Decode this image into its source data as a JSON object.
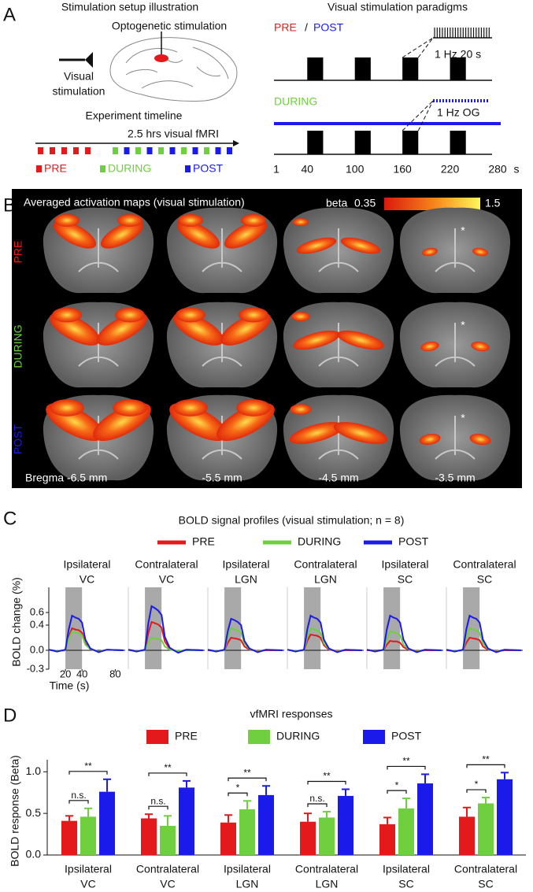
{
  "panel_labels": [
    "A",
    "B",
    "C",
    "D"
  ],
  "panel_a": {
    "setup_title": "Stimulation setup illustration",
    "opto_label": "Optogenetic stimulation",
    "visual_label": [
      "Visual",
      "stimulation"
    ],
    "timeline_title": "Experiment timeline",
    "timeline_label": "2.5 hrs visual fMRI",
    "timeline_legend": [
      "PRE",
      "DURING",
      "POST"
    ],
    "paradigm_title": "Visual stimulation paradigms",
    "pre_label": "PRE",
    "slash": "/",
    "post_label": "POST",
    "during_label": "DURING",
    "zoom_label_visual": "1 Hz 20 s",
    "zoom_label_og": "1 Hz OG",
    "paradigm_axis": {
      "xlim": [
        1,
        280
      ],
      "ticks": [
        1,
        40,
        100,
        160,
        220,
        280
      ],
      "unit": "s",
      "blocks": [
        40,
        100,
        160,
        220
      ],
      "block_duration": 20
    }
  },
  "panel_b": {
    "title": "Averaged activation maps  (visual stimulation)",
    "colorbar": {
      "label": "beta",
      "min": 0.35,
      "max": 1.5
    },
    "rows": [
      "PRE",
      "DURING",
      "POST"
    ],
    "columns": [
      "Bregma -6.5 mm",
      "-5.5 mm",
      "-4.5 mm",
      "-3.5 mm"
    ],
    "marker": "*"
  },
  "chart_data": [
    {
      "type": "line",
      "title": "BOLD signal profiles (visual stimulation; n = 8)",
      "x_label": "Time (s)",
      "y_label": "BOLD change (%)",
      "x": [
        0,
        10,
        20,
        24,
        28,
        32,
        36,
        40,
        44,
        50,
        60,
        70,
        90
      ],
      "xlim": [
        0,
        92
      ],
      "xticks": [
        20,
        40,
        80
      ],
      "stimulus": [
        20,
        40
      ],
      "ylim": [
        -0.3,
        1.0
      ],
      "yticks": [
        -0.3,
        {
          "value": 0,
          "label": "0.0"
        },
        0.4,
        0.6
      ],
      "series": [
        {
          "name": "PRE",
          "color": "#e3191c"
        },
        {
          "name": "DURING",
          "color": "#6fcf3f"
        },
        {
          "name": "POST",
          "color": "#1a1aeb"
        }
      ],
      "panels": [
        {
          "name": [
            "Ipsilateral",
            "VC"
          ],
          "values": [
            [
              0.01,
              -0.01,
              0,
              0.21,
              0.35,
              0.33,
              0.32,
              0.28,
              0.11,
              0.02,
              -0.02,
              0.01,
              0
            ],
            [
              0.01,
              -0.01,
              0,
              0.18,
              0.3,
              0.29,
              0.27,
              0.24,
              0.09,
              0.02,
              -0.02,
              0.01,
              0
            ],
            [
              0.01,
              -0.02,
              0.01,
              0.33,
              0.55,
              0.52,
              0.5,
              0.44,
              0.17,
              0.03,
              -0.03,
              0.01,
              0
            ]
          ]
        },
        {
          "name": [
            "Contralateral",
            "VC"
          ],
          "values": [
            [
              0.01,
              -0.01,
              0,
              0.27,
              0.45,
              0.43,
              0.41,
              0.36,
              0.14,
              0.02,
              -0.02,
              0.01,
              0
            ],
            [
              0,
              -0.01,
              0,
              0.12,
              0.2,
              0.19,
              0.18,
              0.16,
              0.06,
              0.01,
              -0.01,
              0,
              0
            ],
            [
              0.01,
              -0.02,
              0.01,
              0.42,
              0.7,
              0.67,
              0.63,
              0.56,
              0.21,
              0.04,
              -0.04,
              0.01,
              0
            ]
          ]
        },
        {
          "name": [
            "Ipsilateral",
            "LGN"
          ],
          "values": [
            [
              0,
              -0.01,
              0,
              0.12,
              0.2,
              0.19,
              0.18,
              0.16,
              0.06,
              0.01,
              -0.01,
              0,
              0
            ],
            [
              0.01,
              -0.01,
              0,
              0.21,
              0.35,
              0.33,
              0.32,
              0.28,
              0.11,
              0.02,
              -0.02,
              0.01,
              0
            ],
            [
              0.01,
              -0.02,
              0.01,
              0.3,
              0.5,
              0.48,
              0.45,
              0.4,
              0.15,
              0.03,
              -0.03,
              0.01,
              0
            ]
          ]
        },
        {
          "name": [
            "Contralateral",
            "LGN"
          ],
          "values": [
            [
              0.01,
              -0.01,
              0,
              0.15,
              0.25,
              0.24,
              0.23,
              0.2,
              0.08,
              0.01,
              -0.01,
              0,
              0
            ],
            [
              0.01,
              -0.01,
              0,
              0.21,
              0.35,
              0.33,
              0.32,
              0.28,
              0.11,
              0.02,
              -0.02,
              0.01,
              0
            ],
            [
              0.01,
              -0.02,
              0.01,
              0.33,
              0.55,
              0.52,
              0.5,
              0.44,
              0.17,
              0.03,
              -0.03,
              0.01,
              0
            ]
          ]
        },
        {
          "name": [
            "Ipsilateral",
            "SC"
          ],
          "values": [
            [
              0,
              0,
              0,
              0.09,
              0.15,
              0.14,
              0.14,
              0.12,
              0.05,
              0.01,
              -0.01,
              0,
              0
            ],
            [
              0.01,
              -0.01,
              0,
              0.18,
              0.3,
              0.29,
              0.27,
              0.24,
              0.09,
              0.02,
              -0.02,
              0.01,
              0
            ],
            [
              0.01,
              -0.02,
              0.01,
              0.33,
              0.55,
              0.52,
              0.5,
              0.44,
              0.17,
              0.03,
              -0.03,
              0.01,
              0
            ]
          ]
        },
        {
          "name": [
            "Contralateral",
            "SC"
          ],
          "values": [
            [
              0,
              -0.01,
              0,
              0.12,
              0.2,
              0.19,
              0.18,
              0.16,
              0.06,
              0.01,
              -0.01,
              0,
              0
            ],
            [
              0.01,
              -0.01,
              0,
              0.21,
              0.35,
              0.33,
              0.32,
              0.28,
              0.11,
              0.02,
              -0.02,
              0.01,
              0
            ],
            [
              0.01,
              -0.02,
              0.01,
              0.33,
              0.55,
              0.52,
              0.5,
              0.44,
              0.17,
              0.03,
              -0.03,
              0.01,
              0
            ]
          ]
        }
      ]
    },
    {
      "type": "bar",
      "title": "vfMRI responses",
      "y_label": "BOLD response (Beta)",
      "categories": [
        [
          "Ipsilateral",
          "VC"
        ],
        [
          "Contralateral",
          "VC"
        ],
        [
          "Ipsilateral",
          "LGN"
        ],
        [
          "Contralateral",
          "LGN"
        ],
        [
          "Ipsilateral",
          "SC"
        ],
        [
          "Contralateral",
          "SC"
        ]
      ],
      "series": [
        {
          "name": "PRE",
          "color": "#e3191c",
          "values": [
            0.41,
            0.44,
            0.39,
            0.4,
            0.37,
            0.46
          ],
          "errors": [
            0.06,
            0.05,
            0.09,
            0.1,
            0.08,
            0.11
          ]
        },
        {
          "name": "DURING",
          "color": "#6fcf3f",
          "values": [
            0.46,
            0.35,
            0.55,
            0.45,
            0.56,
            0.62
          ],
          "errors": [
            0.1,
            0.12,
            0.1,
            0.07,
            0.12,
            0.07
          ]
        },
        {
          "name": "POST",
          "color": "#1a1aeb",
          "values": [
            0.76,
            0.81,
            0.72,
            0.71,
            0.86,
            0.91
          ],
          "errors": [
            0.15,
            0.08,
            0.11,
            0.08,
            0.11,
            0.08
          ]
        }
      ],
      "significance": [
        [
          "n.s.",
          "**"
        ],
        [
          "n.s.",
          "**"
        ],
        [
          "*",
          "**"
        ],
        [
          "n.s.",
          "**"
        ],
        [
          "*",
          "**"
        ],
        [
          "*",
          "**"
        ]
      ],
      "ylim": [
        0,
        1.05
      ],
      "yticks": [
        {
          "value": 0,
          "label": "0.0"
        },
        {
          "value": 0.5,
          "label": "0.5"
        },
        {
          "value": 1,
          "label": "1.0"
        }
      ]
    }
  ]
}
